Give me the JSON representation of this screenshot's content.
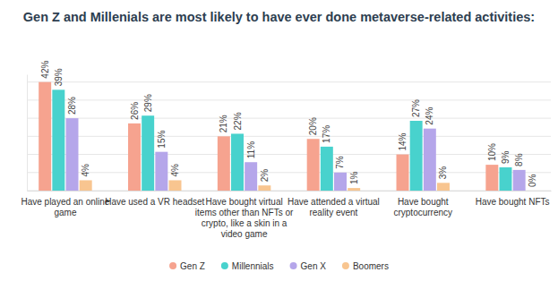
{
  "chart_data": {
    "type": "bar",
    "title": "Gen Z and Millenials are most likely to have ever done metaverse-related activities:",
    "categories": [
      "Have played an online game",
      "Have used a VR headset",
      "Have bought virtual items other than NFTs or crypto, like a skin in a video game",
      "Have attended a virtual reality event",
      "Have bought cryptocurrency",
      "Have bought NFTs"
    ],
    "series": [
      {
        "name": "Gen Z",
        "color": "#f6a38f",
        "values": [
          42,
          26,
          21,
          20,
          14,
          10
        ],
        "value_labels": [
          "42%",
          "26%",
          "21%",
          "20%",
          "14%",
          "10%"
        ]
      },
      {
        "name": "Millennials",
        "color": "#48d2cd",
        "values": [
          39,
          29,
          22,
          17,
          27,
          9
        ],
        "value_labels": [
          "39%",
          "29%",
          "22%",
          "17%",
          "27%",
          "9%"
        ]
      },
      {
        "name": "Gen X",
        "color": "#b5a6ea",
        "values": [
          28,
          15,
          11,
          7,
          24,
          8
        ],
        "value_labels": [
          "28%",
          "15%",
          "11%",
          "7%",
          "24%",
          "8%"
        ]
      },
      {
        "name": "Boomers",
        "color": "#f8c590",
        "values": [
          4,
          4,
          2,
          1,
          3,
          0
        ],
        "value_labels": [
          "4%",
          "4%",
          "2%",
          "1%",
          "3%",
          "0%"
        ]
      }
    ],
    "ylim": [
      0,
      45
    ],
    "yticks": [
      0,
      7,
      14,
      21,
      28,
      35,
      42
    ],
    "grid": true,
    "data_labels": true,
    "tick_labels": "x",
    "legend": "bottom"
  }
}
